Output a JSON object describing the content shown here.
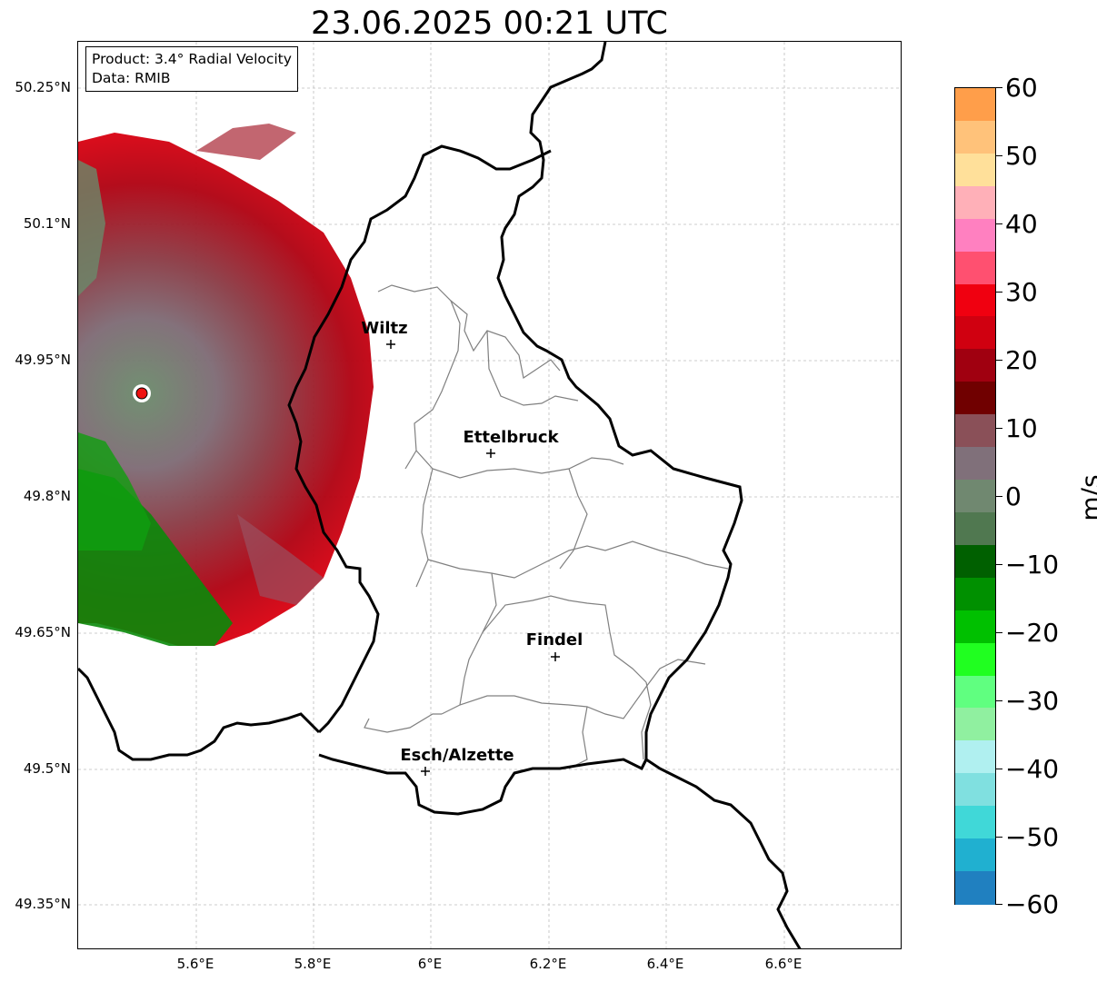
{
  "title": "23.06.2025 00:21 UTC",
  "info": {
    "product": "Product: 3.4° Radial Velocity",
    "data": "Data: RMIB"
  },
  "axes": {
    "lat_labels": [
      "50.25°N",
      "50.1°N",
      "49.95°N",
      "49.8°N",
      "49.65°N",
      "49.5°N",
      "49.35°N"
    ],
    "lon_labels": [
      "5.6°E",
      "5.8°E",
      "6°E",
      "6.2°E",
      "6.4°E",
      "6.6°E"
    ]
  },
  "cities": [
    {
      "name": "Wiltz"
    },
    {
      "name": "Ettelbruck"
    },
    {
      "name": "Findel"
    },
    {
      "name": "Esch/Alzette"
    }
  ],
  "colorbar": {
    "unit": "m/s",
    "ticks": [
      "60",
      "50",
      "40",
      "30",
      "20",
      "10",
      "0",
      "−10",
      "−20",
      "−30",
      "−40",
      "−50",
      "−60"
    ],
    "range": [
      -60,
      60
    ],
    "colors": [
      "#ff9e4a",
      "#ffc27a",
      "#ffe09a",
      "#ffb0b8",
      "#ff80c0",
      "#ff5070",
      "#f00010",
      "#d00010",
      "#a00010",
      "#700000",
      "#8a5058",
      "#80707a",
      "#708870",
      "#507850",
      "#006000",
      "#009000",
      "#00c000",
      "#20ff20",
      "#60ff80",
      "#90f0a0",
      "#b0f0f0",
      "#80e0e0",
      "#40d8d8",
      "#20b0d0",
      "#2080c0"
    ]
  },
  "radar": {
    "color": "#ee1111"
  }
}
